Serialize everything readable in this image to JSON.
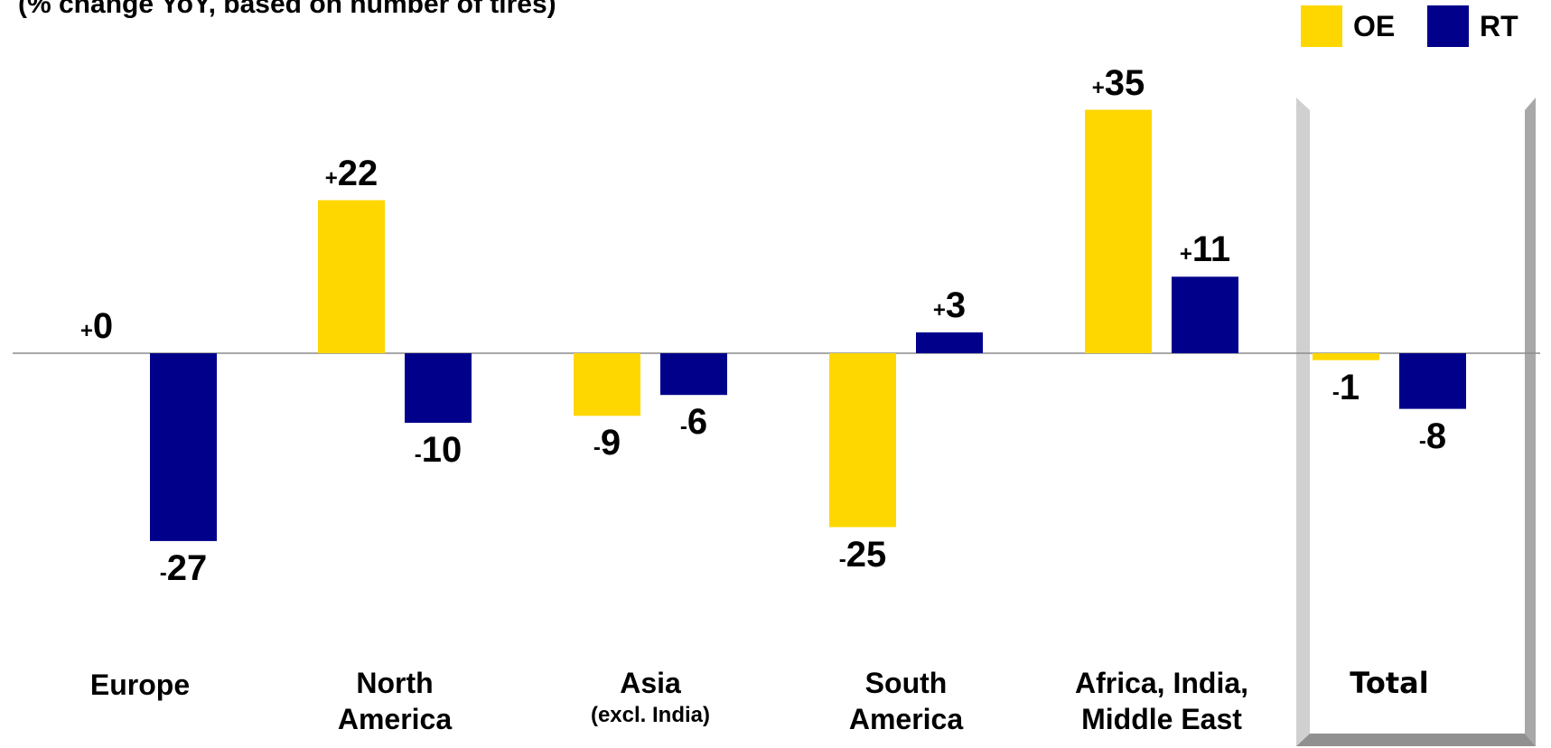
{
  "subtitle": "(% change YoY, based on number of tires)",
  "legend": [
    {
      "name": "OE",
      "color": "#FFD700"
    },
    {
      "name": "RT",
      "color": "#00008B"
    }
  ],
  "chart_data": {
    "type": "bar",
    "subtitle": "(% change YoY, based on number of tires)",
    "categories": [
      {
        "line1": "Europe",
        "line2": "",
        "line3": ""
      },
      {
        "line1": "North",
        "line2": "America",
        "line3": ""
      },
      {
        "line1": "Asia",
        "line2": "",
        "line3": "(excl. India)"
      },
      {
        "line1": "South",
        "line2": "America",
        "line3": ""
      },
      {
        "line1": "Africa, India,",
        "line2": "Middle East",
        "line3": ""
      },
      {
        "line1": "Total",
        "line2": "",
        "line3": ""
      }
    ],
    "series": [
      {
        "name": "OE",
        "color": "#FFD700",
        "values": [
          0,
          22,
          -9,
          -25,
          35,
          -1
        ],
        "labels": [
          [
            "+",
            "0"
          ],
          [
            "+",
            "22"
          ],
          [
            "-",
            "9"
          ],
          [
            "-",
            "25"
          ],
          [
            "+",
            "35"
          ],
          [
            "-",
            "1"
          ]
        ]
      },
      {
        "name": "RT",
        "color": "#00008B",
        "values": [
          -27,
          -10,
          -6,
          3,
          11,
          -8
        ],
        "labels": [
          [
            "-",
            "27"
          ],
          [
            "-",
            "10"
          ],
          [
            "-",
            "6"
          ],
          [
            "+",
            "3"
          ],
          [
            "+",
            "11"
          ],
          [
            "-",
            "8"
          ]
        ]
      }
    ],
    "ylim": [
      -30,
      40
    ],
    "grid": false,
    "legend_position": "top-right",
    "highlighted_category": "Total"
  }
}
